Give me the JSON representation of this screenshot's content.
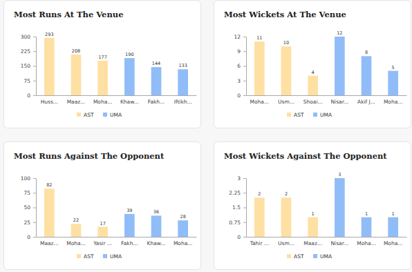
{
  "chart_data": [
    {
      "type": "bar",
      "title": "Most Runs At The Venue",
      "categories": [
        "Huss...",
        "Maaz...",
        "Moha...",
        "Khaw...",
        "Fakh...",
        "Iftikh..."
      ],
      "series": [
        {
          "name": "AST",
          "color": "#fee0a3",
          "values": [
            293,
            208,
            177,
            null,
            null,
            null
          ]
        },
        {
          "name": "UMA",
          "color": "#90bdf8",
          "values": [
            null,
            null,
            null,
            190,
            144,
            133
          ]
        }
      ],
      "ylim": [
        0,
        300
      ],
      "yticks": [
        0,
        75,
        150,
        225,
        300
      ],
      "grid": false,
      "data_labels": true,
      "legend": "bottom"
    },
    {
      "type": "bar",
      "title": "Most Wickets At The Venue",
      "categories": [
        "Moha...",
        "Usm...",
        "Shoai...",
        "Nisar...",
        "Akif J...",
        "Moha..."
      ],
      "series": [
        {
          "name": "AST",
          "color": "#fee0a3",
          "values": [
            11,
            10,
            4,
            null,
            null,
            null
          ]
        },
        {
          "name": "UMA",
          "color": "#90bdf8",
          "values": [
            null,
            null,
            null,
            12,
            8,
            5
          ]
        }
      ],
      "ylim": [
        0,
        12
      ],
      "yticks": [
        0,
        3,
        6,
        9,
        12
      ],
      "grid": false,
      "data_labels": true,
      "legend": "bottom"
    },
    {
      "type": "bar",
      "title": "Most Runs Against The Opponent",
      "categories": [
        "Maaz...",
        "Moha...",
        "Yasir ...",
        "Fakh...",
        "Khaw...",
        "Moha..."
      ],
      "series": [
        {
          "name": "AST",
          "color": "#fee0a3",
          "values": [
            82,
            22,
            17,
            null,
            null,
            null
          ]
        },
        {
          "name": "UMA",
          "color": "#90bdf8",
          "values": [
            null,
            null,
            null,
            39,
            36,
            28
          ]
        }
      ],
      "ylim": [
        0,
        100
      ],
      "yticks": [
        0,
        25,
        50,
        75,
        100
      ],
      "grid": false,
      "data_labels": true,
      "legend": "bottom"
    },
    {
      "type": "bar",
      "title": "Most Wickets Against The Opponent",
      "categories": [
        "Tahir ...",
        "Usm...",
        "Maaz...",
        "Nisar...",
        "Moha...",
        "Moha..."
      ],
      "series": [
        {
          "name": "AST",
          "color": "#fee0a3",
          "values": [
            2,
            2,
            1,
            null,
            null,
            null
          ]
        },
        {
          "name": "UMA",
          "color": "#90bdf8",
          "values": [
            null,
            null,
            null,
            3,
            1,
            1
          ]
        }
      ],
      "ylim": [
        0,
        3
      ],
      "yticks": [
        0,
        0.75,
        1.5,
        2.25,
        3
      ],
      "grid": false,
      "data_labels": true,
      "legend": "bottom"
    }
  ]
}
